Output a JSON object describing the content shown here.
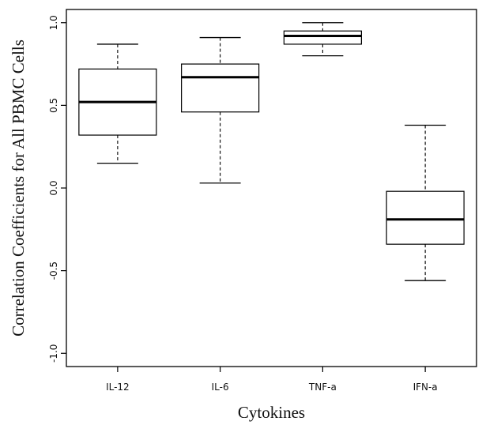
{
  "chart_data": {
    "type": "box",
    "xlabel": "Cytokines",
    "ylabel": "Correlation Coefficients for All PBMC Cells",
    "ylim": [
      -1.08,
      1.08
    ],
    "yticks": [
      -1.0,
      -0.5,
      0.0,
      0.5,
      1.0
    ],
    "ytick_labels": [
      "-1.0",
      "-0.5",
      "0.0",
      "0.5",
      "1.0"
    ],
    "grid": false,
    "categories": [
      "IL-12",
      "IL-6",
      "TNF-a",
      "IFN-a"
    ],
    "boxes": [
      {
        "category": "IL-12",
        "min": 0.15,
        "q1": 0.32,
        "median": 0.52,
        "q3": 0.72,
        "max": 0.87
      },
      {
        "category": "IL-6",
        "min": 0.03,
        "q1": 0.46,
        "median": 0.67,
        "q3": 0.75,
        "max": 0.91
      },
      {
        "category": "TNF-a",
        "min": 0.8,
        "q1": 0.87,
        "median": 0.92,
        "q3": 0.95,
        "max": 1.0
      },
      {
        "category": "IFN-a",
        "min": -0.56,
        "q1": -0.34,
        "median": -0.19,
        "q3": -0.02,
        "max": 0.38
      }
    ]
  }
}
